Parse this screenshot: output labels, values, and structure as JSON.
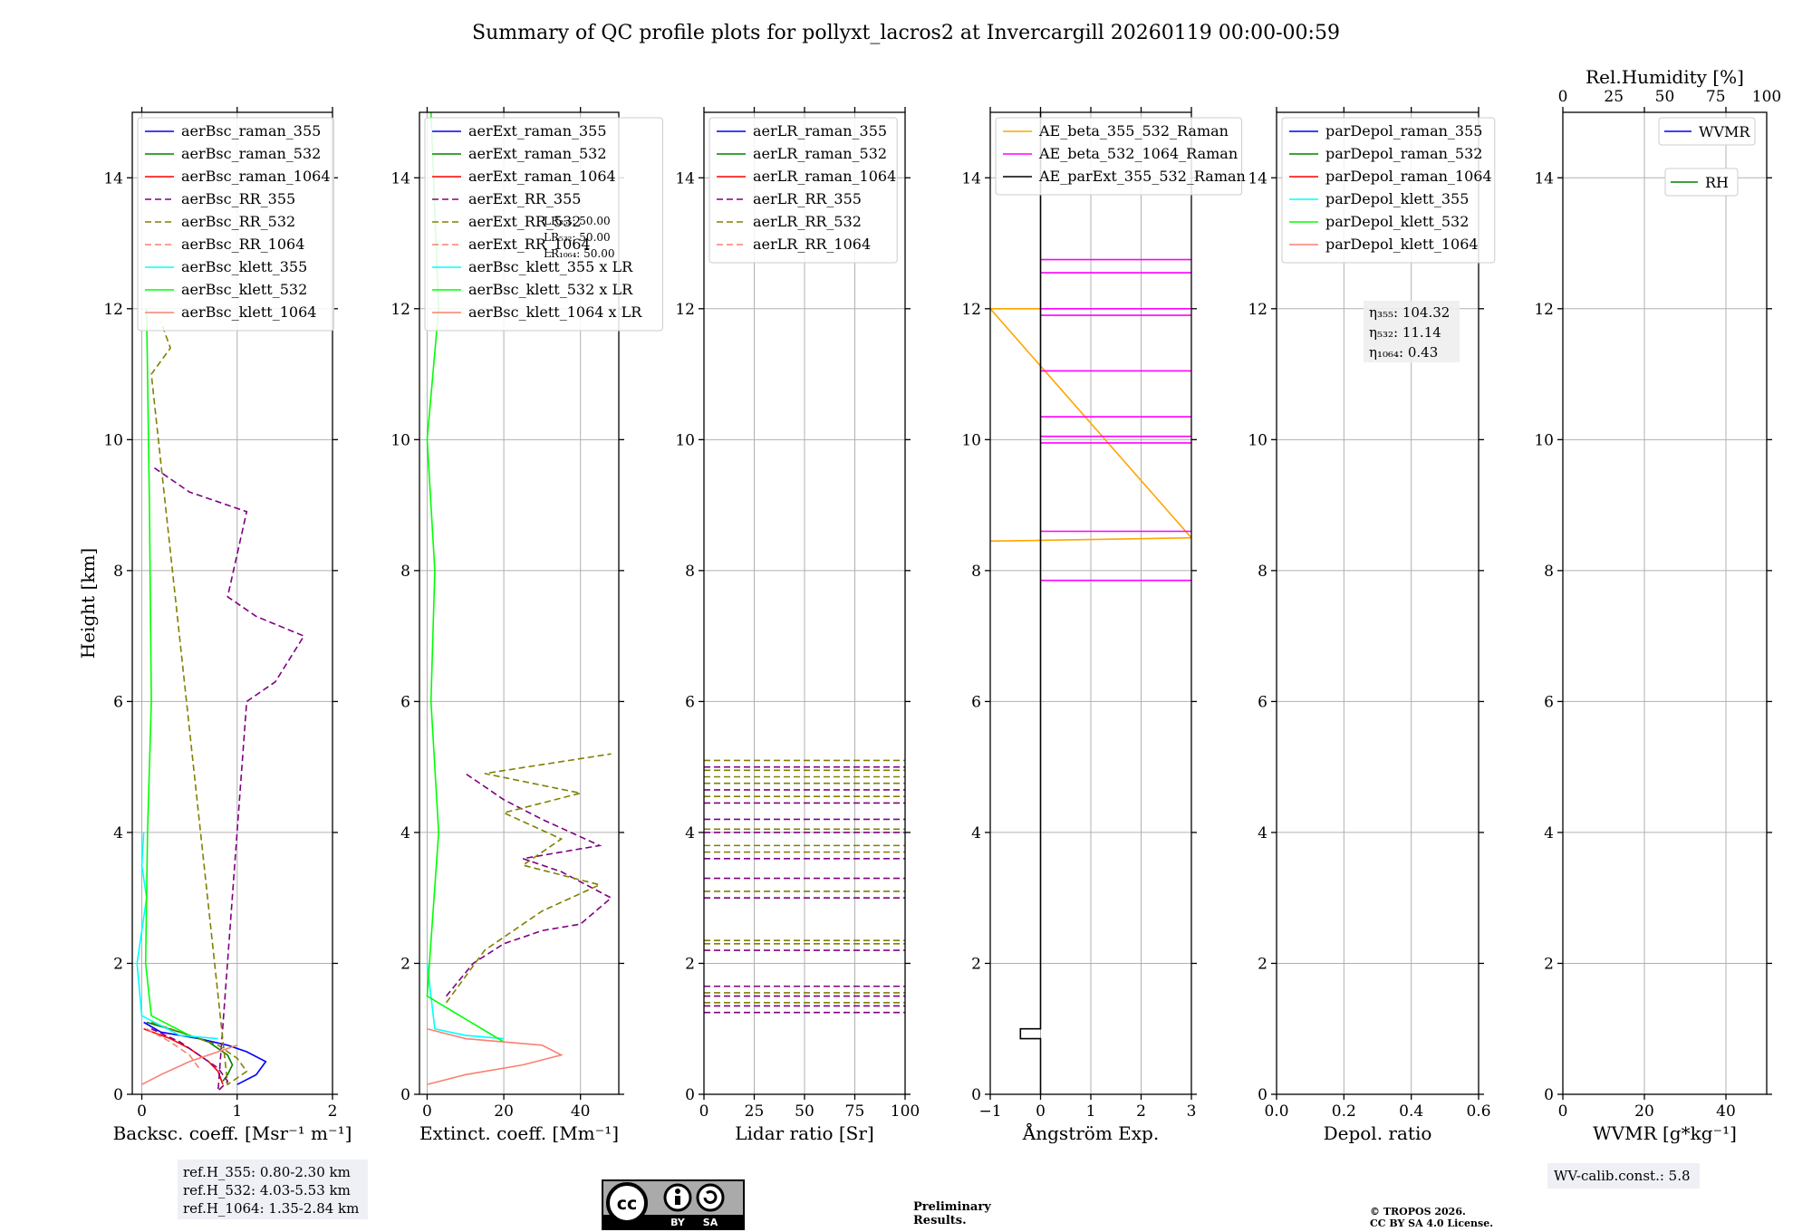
{
  "title": "Summary of QC profile plots for pollyxt_lacros2 at Invercargill 20260119 00:00-00:59",
  "colors": {
    "blue": "#0000ff",
    "green": "#008000",
    "red": "#ff0000",
    "purple": "#800080",
    "olive": "#808000",
    "salmon": "#fa8072",
    "cyan": "#00ffff",
    "lime": "#00ff00",
    "orange": "#ffa500",
    "magenta": "#ff00ff",
    "black": "#000000"
  },
  "chart_data": [
    {
      "id": "bsc",
      "type": "line",
      "xlabel": "Backsc. coeff. [Msr⁻¹ m⁻¹]",
      "ylabel": "Height [km]",
      "xlim": [
        -0.1,
        2
      ],
      "ylim": [
        0,
        15
      ],
      "xticks": [
        0,
        1,
        2
      ],
      "yticks": [
        0,
        2,
        4,
        6,
        8,
        10,
        12,
        14
      ],
      "grid": true,
      "legend_position": "top-right",
      "legend": [
        "aerBsc_raman_355",
        "aerBsc_raman_532",
        "aerBsc_raman_1064",
        "aerBsc_RR_355",
        "aerBsc_RR_532",
        "aerBsc_RR_1064",
        "aerBsc_klett_355",
        "aerBsc_klett_532",
        "aerBsc_klett_1064"
      ],
      "series": [
        {
          "name": "aerBsc_raman_355",
          "color": "blue",
          "dash": false,
          "x": [
            0.02,
            0.2,
            0.6,
            0.9,
            1.1,
            1.3,
            1.2,
            1.0
          ],
          "y": [
            1.1,
            0.95,
            0.85,
            0.75,
            0.65,
            0.5,
            0.3,
            0.15
          ]
        },
        {
          "name": "aerBsc_raman_532",
          "color": "green",
          "dash": false,
          "x": [
            0.05,
            0.4,
            0.7,
            0.9,
            0.95,
            0.9,
            0.85
          ],
          "y": [
            1.1,
            0.95,
            0.8,
            0.6,
            0.45,
            0.3,
            0.2
          ]
        },
        {
          "name": "aerBsc_raman_1064",
          "color": "red",
          "dash": false,
          "x": [
            0.02,
            0.3,
            0.5,
            0.7,
            0.8,
            0.85
          ],
          "y": [
            1.0,
            0.85,
            0.7,
            0.5,
            0.35,
            0.15
          ]
        },
        {
          "name": "aerBsc_RR_355",
          "color": "purple",
          "dash": true,
          "x": [
            0.1,
            0.4,
            0.6,
            0.8,
            0.9,
            0.8,
            1.1,
            1.4,
            1.7,
            1.2,
            0.9,
            1.1,
            0.5,
            0.1
          ],
          "y": [
            1.0,
            0.8,
            0.6,
            0.4,
            0.2,
            0.05,
            6.0,
            6.3,
            7.0,
            7.3,
            7.6,
            8.9,
            9.2,
            9.6
          ]
        },
        {
          "name": "aerBsc_RR_532",
          "color": "olive",
          "dash": true,
          "x": [
            0.1,
            0.5,
            0.8,
            1.0,
            1.1,
            0.9,
            0.1,
            0.3,
            0.2
          ],
          "y": [
            1.1,
            0.9,
            0.75,
            0.55,
            0.35,
            0.15,
            11.0,
            11.4,
            11.8
          ]
        },
        {
          "name": "aerBsc_RR_1064",
          "color": "salmon",
          "dash": true,
          "x": [
            0.05,
            0.3,
            0.5,
            0.6
          ],
          "y": [
            1.0,
            0.8,
            0.6,
            0.4
          ]
        },
        {
          "name": "aerBsc_klett_355",
          "color": "cyan",
          "dash": false,
          "x": [
            0.02,
            0.0,
            0.05,
            -0.05,
            0.0,
            0.4,
            0.8
          ],
          "y": [
            4.0,
            3.5,
            3.0,
            2.0,
            1.2,
            0.9,
            0.85
          ]
        },
        {
          "name": "aerBsc_klett_532",
          "color": "lime",
          "dash": false,
          "x": [
            0.05,
            0.08,
            0.1,
            0.06,
            0.04,
            0.1,
            0.5
          ],
          "y": [
            12.0,
            9.0,
            6.0,
            4.0,
            2.0,
            1.2,
            0.9
          ]
        },
        {
          "name": "aerBsc_klett_1064",
          "color": "salmon",
          "dash": false,
          "x": [
            0.0,
            0.2,
            0.5,
            0.8,
            1.0
          ],
          "y": [
            0.15,
            0.3,
            0.5,
            0.65,
            0.75
          ]
        }
      ],
      "ref_heights": [
        "ref.H_355: 0.80-2.30 km",
        "ref.H_532: 4.03-5.53 km",
        "ref.H_1064: 1.35-2.84 km"
      ]
    },
    {
      "id": "ext",
      "type": "line",
      "xlabel": "Extinct. coeff. [Mm⁻¹]",
      "xlim": [
        -2,
        50
      ],
      "ylim": [
        0,
        15
      ],
      "xticks": [
        0,
        20,
        40
      ],
      "yticks": [
        0,
        2,
        4,
        6,
        8,
        10,
        12,
        14
      ],
      "grid": true,
      "legend_position": "top-right",
      "legend": [
        "aerExt_raman_355",
        "aerExt_raman_532",
        "aerExt_raman_1064",
        "aerExt_RR_355",
        "aerExt_RR_532",
        "aerExt_RR_1064",
        "aerBsc_klett_355 x LR",
        "aerBsc_klett_532 x LR",
        "aerBsc_klett_1064 x LR"
      ],
      "lidar_ratio_labels": [
        "LR₃₅₅: 50.00",
        "LR₅₃₂: 50.00",
        "LR₁₀₆₄: 50.00"
      ],
      "series": [
        {
          "name": "aerExt_RR_355",
          "color": "purple",
          "dash": true,
          "x": [
            5,
            12,
            20,
            30,
            40,
            48,
            35,
            25,
            45,
            30,
            20,
            10
          ],
          "y": [
            1.5,
            2.0,
            2.3,
            2.5,
            2.6,
            3.0,
            3.4,
            3.6,
            3.8,
            4.2,
            4.5,
            4.9
          ]
        },
        {
          "name": "aerExt_RR_532",
          "color": "olive",
          "dash": true,
          "x": [
            5,
            15,
            30,
            45,
            25,
            35,
            20,
            40,
            15,
            48
          ],
          "y": [
            1.4,
            2.2,
            2.8,
            3.2,
            3.5,
            3.9,
            4.3,
            4.6,
            4.9,
            5.2
          ]
        },
        {
          "name": "aerBsc_klett_355 x LR",
          "color": "cyan",
          "dash": false,
          "x": [
            0,
            2,
            10,
            20
          ],
          "y": [
            2.0,
            1.0,
            0.9,
            0.85
          ]
        },
        {
          "name": "aerBsc_klett_532 x LR",
          "color": "lime",
          "dash": false,
          "x": [
            1,
            3,
            0,
            2,
            1,
            3,
            0,
            20
          ],
          "y": [
            15,
            12,
            10,
            8,
            6,
            4,
            1.5,
            0.8
          ]
        },
        {
          "name": "aerBsc_klett_1064 x LR",
          "color": "salmon",
          "dash": false,
          "x": [
            0,
            10,
            25,
            35,
            30,
            10,
            0
          ],
          "y": [
            0.15,
            0.3,
            0.45,
            0.6,
            0.75,
            0.85,
            1.0
          ]
        }
      ]
    },
    {
      "id": "lr",
      "type": "line",
      "xlabel": "Lidar ratio [Sr]",
      "xlim": [
        0,
        100
      ],
      "ylim": [
        0,
        15
      ],
      "xticks": [
        0,
        25,
        50,
        75,
        100
      ],
      "yticks": [
        0,
        2,
        4,
        6,
        8,
        10,
        12,
        14
      ],
      "grid": true,
      "legend_position": "top-left",
      "legend": [
        "aerLR_raman_355",
        "aerLR_raman_532",
        "aerLR_raman_1064",
        "aerLR_RR_355",
        "aerLR_RR_532",
        "aerLR_RR_1064"
      ],
      "series": [
        {
          "name": "aerLR_RR_355",
          "color": "purple",
          "dash": true,
          "y_levels": [
            1.25,
            1.35,
            1.5,
            1.65,
            2.2,
            3.0,
            3.3,
            3.6,
            4.0,
            4.2,
            4.45,
            4.65,
            5.0
          ]
        },
        {
          "name": "aerLR_RR_532",
          "color": "olive",
          "dash": true,
          "y_levels": [
            1.4,
            1.55,
            2.3,
            2.35,
            3.1,
            3.7,
            3.8,
            4.05,
            4.55,
            4.75,
            4.85,
            4.95,
            5.1
          ]
        }
      ]
    },
    {
      "id": "ae",
      "type": "line",
      "xlabel": "Ångström Exp.",
      "xlim": [
        -1,
        3
      ],
      "ylim": [
        0,
        15
      ],
      "xticks": [
        -1,
        0,
        1,
        2,
        3
      ],
      "yticks": [
        0,
        2,
        4,
        6,
        8,
        10,
        12,
        14
      ],
      "grid": true,
      "legend_position": "top-left",
      "legend": [
        "AE_beta_355_532_Raman",
        "AE_beta_532_1064_Raman",
        "AE_parExt_355_532_Raman"
      ],
      "series": [
        {
          "name": "AE_beta_355_532_Raman",
          "color": "orange",
          "x": [
            -1,
            3,
            -1,
            0
          ],
          "y": [
            8.45,
            8.5,
            12.0,
            12.0
          ]
        },
        {
          "name": "AE_beta_532_1064_Raman",
          "color": "magenta",
          "y_levels": [
            7.85,
            8.6,
            9.95,
            10.05,
            10.35,
            11.05,
            11.9,
            12.0,
            12.55,
            12.75
          ],
          "x_range": [
            0,
            3
          ]
        },
        {
          "name": "AE_parExt_355_532_Raman",
          "color": "black",
          "x": [
            0,
            0,
            -0.4,
            -0.4,
            0,
            0
          ],
          "y": [
            0,
            0.85,
            0.85,
            1.0,
            1.0,
            15
          ]
        }
      ]
    },
    {
      "id": "depol",
      "type": "line",
      "xlabel": "Depol. ratio",
      "xlim": [
        0,
        0.6
      ],
      "ylim": [
        0,
        15
      ],
      "xticks": [
        0.0,
        0.2,
        0.4,
        0.6
      ],
      "yticks": [
        0,
        2,
        4,
        6,
        8,
        10,
        12,
        14
      ],
      "grid": true,
      "legend_position": "top-left",
      "legend": [
        "parDepol_raman_355",
        "parDepol_raman_532",
        "parDepol_raman_1064",
        "parDepol_klett_355",
        "parDepol_klett_532",
        "parDepol_klett_1064"
      ],
      "annotation": [
        "η₃₅₅: 104.32",
        "η₅₃₂: 11.14",
        "η₁₀₆₄: 0.43"
      ]
    },
    {
      "id": "wv",
      "type": "line",
      "xlabel": "WVMR [g*kg⁻¹]",
      "xlabel_top": "Rel.Humidity [%]",
      "xlim": [
        0,
        50
      ],
      "ylim": [
        0,
        15
      ],
      "xticks": [
        0,
        20,
        40
      ],
      "xticks_top": [
        0,
        25,
        50,
        75,
        100
      ],
      "yticks": [
        0,
        2,
        4,
        6,
        8,
        10,
        12,
        14
      ],
      "grid": true,
      "legend_position": "top-right",
      "legend": [
        "WVMR",
        "RH"
      ],
      "calib_note": "WV-calib.const.: 5.8"
    }
  ],
  "footer": {
    "preliminary": "Preliminary\nResults.",
    "preliminary_1": "Preliminary",
    "preliminary_2": "Results.",
    "copyright_1": "© TROPOS 2026.",
    "copyright_2": "CC BY SA 4.0 License.",
    "cc_badge": [
      "cc",
      "BY",
      "SA"
    ]
  }
}
